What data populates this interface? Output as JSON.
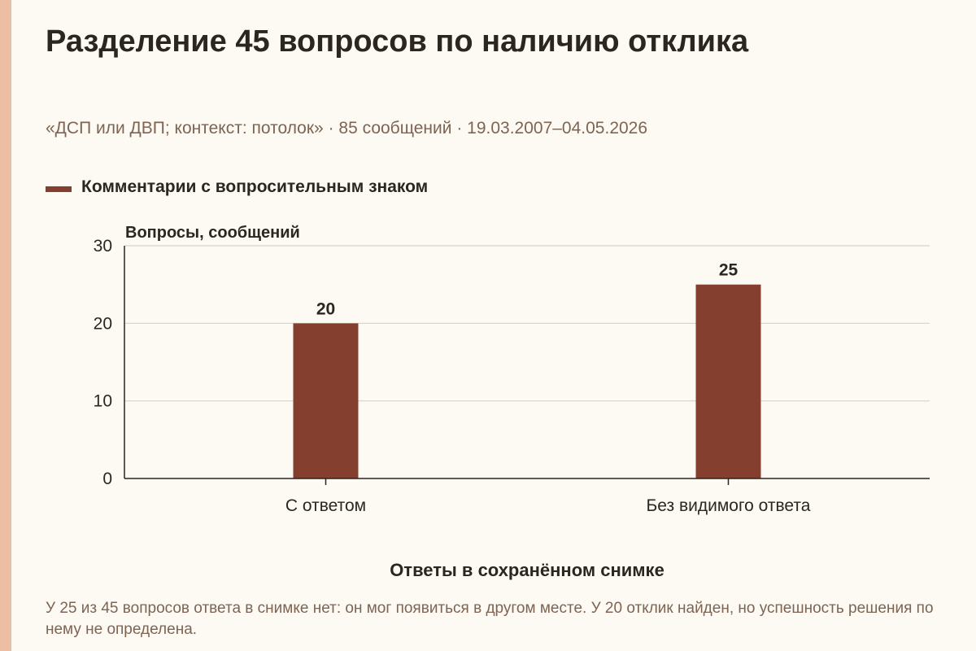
{
  "header": {
    "title": "Разделение 45 вопросов по наличию отклика",
    "subtitle": "«ДСП или ДВП; контекст: потолок» · 85 сообщений · 19.03.2007–04.05.2026"
  },
  "colors": {
    "bar": "#843f2f",
    "grid": "#d9d2c9",
    "axis": "#2b2620",
    "text": "#2b2620",
    "muted": "#7d6453",
    "background": "#fdfaf3",
    "stripe": "#ecbfa5"
  },
  "chart_data": {
    "type": "bar",
    "title": "Разделение 45 вопросов по наличию отклика",
    "categories": [
      "С ответом",
      "Без видимого ответа"
    ],
    "series": [
      {
        "name": "Комментарии с вопросительным знаком",
        "values": [
          20,
          25
        ]
      }
    ],
    "data_labels": [
      "20",
      "25"
    ],
    "ylabel": "Вопросы, сообщений",
    "xlabel": "Ответы в сохранённом снимке",
    "ylim": [
      0,
      30
    ],
    "yticks": [
      0,
      10,
      20,
      30
    ],
    "ytick_labels": [
      "0",
      "10",
      "20",
      "30"
    ],
    "grid": true,
    "legend_position": "top-left"
  },
  "note": "У 25 из 45 вопросов ответа в снимке нет: он мог появиться в другом месте. У 20 отклик найден, но успешность решения по нему не определена."
}
